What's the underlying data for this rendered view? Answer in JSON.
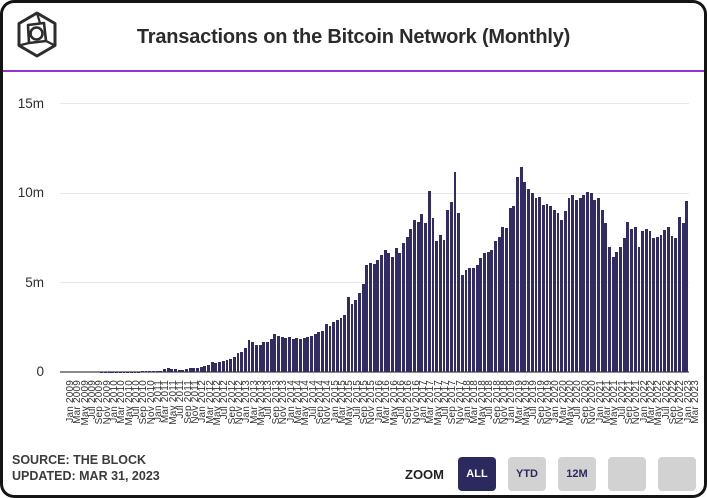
{
  "header": {
    "title": "Transactions on the Bitcoin Network (Monthly)"
  },
  "divider_color": "#9333d4",
  "chart_data": {
    "type": "bar",
    "title": "Transactions on the Bitcoin Network (Monthly)",
    "unit": "transactions per month, millions",
    "bar_color": "#322c66",
    "grid": "horizontal",
    "ylim": [
      0,
      15
    ],
    "yticks": [
      {
        "label": "0",
        "value": 0
      },
      {
        "label": "5m",
        "value": 5
      },
      {
        "label": "10m",
        "value": 10
      },
      {
        "label": "15m",
        "value": 15
      }
    ],
    "x_tick_step": 2,
    "x": [
      "Jan 2009",
      "Feb 2009",
      "Mar 2009",
      "Apr 2009",
      "May 2009",
      "Jun 2009",
      "Jul 2009",
      "Aug 2009",
      "Sep 2009",
      "Oct 2009",
      "Nov 2009",
      "Dec 2009",
      "Jan 2010",
      "Feb 2010",
      "Mar 2010",
      "Apr 2010",
      "May 2010",
      "Jun 2010",
      "Jul 2010",
      "Aug 2010",
      "Sep 2010",
      "Oct 2010",
      "Nov 2010",
      "Dec 2010",
      "Jan 2011",
      "Feb 2011",
      "Mar 2011",
      "Apr 2011",
      "May 2011",
      "Jun 2011",
      "Jul 2011",
      "Aug 2011",
      "Sep 2011",
      "Oct 2011",
      "Nov 2011",
      "Dec 2011",
      "Jan 2012",
      "Feb 2012",
      "Mar 2012",
      "Apr 2012",
      "May 2012",
      "Jun 2012",
      "Jul 2012",
      "Aug 2012",
      "Sep 2012",
      "Oct 2012",
      "Nov 2012",
      "Dec 2012",
      "Jan 2013",
      "Feb 2013",
      "Mar 2013",
      "Apr 2013",
      "May 2013",
      "Jun 2013",
      "Jul 2013",
      "Aug 2013",
      "Sep 2013",
      "Oct 2013",
      "Nov 2013",
      "Dec 2013",
      "Jan 2014",
      "Feb 2014",
      "Mar 2014",
      "Apr 2014",
      "May 2014",
      "Jun 2014",
      "Jul 2014",
      "Aug 2014",
      "Sep 2014",
      "Oct 2014",
      "Nov 2014",
      "Dec 2014",
      "Jan 2015",
      "Feb 2015",
      "Mar 2015",
      "Apr 2015",
      "May 2015",
      "Jun 2015",
      "Jul 2015",
      "Aug 2015",
      "Sep 2015",
      "Oct 2015",
      "Nov 2015",
      "Dec 2015",
      "Jan 2016",
      "Feb 2016",
      "Mar 2016",
      "Apr 2016",
      "May 2016",
      "Jun 2016",
      "Jul 2016",
      "Aug 2016",
      "Sep 2016",
      "Oct 2016",
      "Nov 2016",
      "Dec 2016",
      "Jan 2017",
      "Feb 2017",
      "Mar 2017",
      "Apr 2017",
      "May 2017",
      "Jun 2017",
      "Jul 2017",
      "Aug 2017",
      "Sep 2017",
      "Oct 2017",
      "Nov 2017",
      "Dec 2017",
      "Jan 2018",
      "Feb 2018",
      "Mar 2018",
      "Apr 2018",
      "May 2018",
      "Jun 2018",
      "Jul 2018",
      "Aug 2018",
      "Sep 2018",
      "Oct 2018",
      "Nov 2018",
      "Dec 2018",
      "Jan 2019",
      "Feb 2019",
      "Mar 2019",
      "Apr 2019",
      "May 2019",
      "Jun 2019",
      "Jul 2019",
      "Aug 2019",
      "Sep 2019",
      "Oct 2019",
      "Nov 2019",
      "Dec 2019",
      "Jan 2020",
      "Feb 2020",
      "Mar 2020",
      "Apr 2020",
      "May 2020",
      "Jun 2020",
      "Jul 2020",
      "Aug 2020",
      "Sep 2020",
      "Oct 2020",
      "Nov 2020",
      "Dec 2020",
      "Jan 2021",
      "Feb 2021",
      "Mar 2021",
      "Apr 2021",
      "May 2021",
      "Jun 2021",
      "Jul 2021",
      "Aug 2021",
      "Sep 2021",
      "Oct 2021",
      "Nov 2021",
      "Dec 2021",
      "Jan 2022",
      "Feb 2022",
      "Mar 2022",
      "Apr 2022",
      "May 2022",
      "Jun 2022",
      "Jul 2022",
      "Aug 2022",
      "Sep 2022",
      "Oct 2022",
      "Nov 2022",
      "Dec 2022",
      "Jan 2023",
      "Feb 2023",
      "Mar 2023"
    ],
    "values": [
      0,
      0,
      0,
      0,
      0,
      0,
      0,
      0,
      0,
      0,
      0,
      0.01,
      0.01,
      0.01,
      0.01,
      0.01,
      0.01,
      0.01,
      0.02,
      0.02,
      0.02,
      0.02,
      0.03,
      0.04,
      0.05,
      0.05,
      0.06,
      0.08,
      0.17,
      0.22,
      0.18,
      0.15,
      0.13,
      0.13,
      0.17,
      0.2,
      0.22,
      0.23,
      0.28,
      0.33,
      0.39,
      0.55,
      0.5,
      0.58,
      0.59,
      0.66,
      0.71,
      0.82,
      1.05,
      1.1,
      1.35,
      1.8,
      1.65,
      1.5,
      1.5,
      1.65,
      1.7,
      1.85,
      2.1,
      2.0,
      1.95,
      1.9,
      1.95,
      1.85,
      1.9,
      1.85,
      1.9,
      1.95,
      2.0,
      2.1,
      2.25,
      2.3,
      2.7,
      2.55,
      2.8,
      2.9,
      3.0,
      3.2,
      4.2,
      3.8,
      4.0,
      4.4,
      4.9,
      6.0,
      6.1,
      6.05,
      6.25,
      6.55,
      6.8,
      6.65,
      6.45,
      6.9,
      6.65,
      7.2,
      7.55,
      8.0,
      8.5,
      8.4,
      8.85,
      8.3,
      10.1,
      8.6,
      7.3,
      7.65,
      7.4,
      9.05,
      9.5,
      11.15,
      8.9,
      5.4,
      5.7,
      5.8,
      5.8,
      6.0,
      6.35,
      6.65,
      6.7,
      6.8,
      7.3,
      7.55,
      8.1,
      8.05,
      9.15,
      9.25,
      10.9,
      11.45,
      10.6,
      10.25,
      10.0,
      9.7,
      9.8,
      9.35,
      9.4,
      9.3,
      9.05,
      8.9,
      8.5,
      9.0,
      9.7,
      9.9,
      9.6,
      9.7,
      9.9,
      10.05,
      10.0,
      9.6,
      9.7,
      9.05,
      8.3,
      7.0,
      6.45,
      6.7,
      7.0,
      7.5,
      8.4,
      8.0,
      8.1,
      7.0,
      7.9,
      8.0,
      7.85,
      7.5,
      7.55,
      7.65,
      7.95,
      8.1,
      7.6,
      7.5,
      8.65,
      8.35,
      9.55
    ]
  },
  "footer": {
    "source_line": "SOURCE: THE BLOCK",
    "updated_line": "UPDATED: MAR 31, 2023",
    "zoom_label": "ZOOM",
    "zoom_buttons": [
      {
        "label": "ALL",
        "active": true
      },
      {
        "label": "YTD",
        "active": false
      },
      {
        "label": "12M",
        "active": false
      },
      {
        "label": "",
        "active": false
      },
      {
        "label": "",
        "active": false
      }
    ],
    "active_button_color": "#2b2a5e",
    "inactive_button_color": "#d2d2d2"
  }
}
